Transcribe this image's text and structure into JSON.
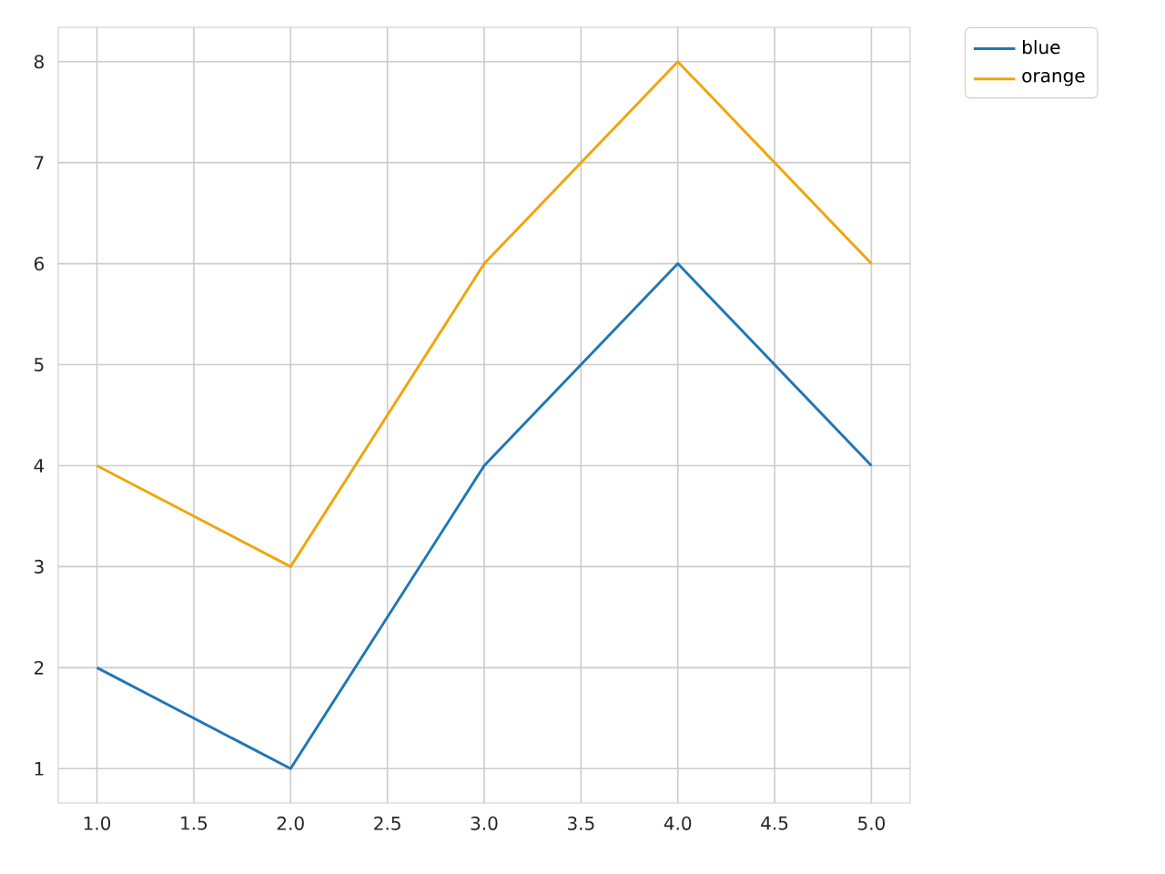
{
  "chart_data": {
    "type": "line",
    "x": [
      1,
      2,
      3,
      4,
      5
    ],
    "series": [
      {
        "name": "blue",
        "color": "#1f77b4",
        "values": [
          2,
          1,
          4,
          6,
          4
        ]
      },
      {
        "name": "orange",
        "color": "#f0a50a",
        "values": [
          4,
          3,
          6,
          8,
          6
        ]
      }
    ],
    "xlim": [
      0.8,
      5.2
    ],
    "ylim": [
      0.66,
      8.34
    ],
    "xticks": [
      {
        "value": 1,
        "label": "1.0"
      },
      {
        "value": 1.5,
        "label": "1.5"
      },
      {
        "value": 2,
        "label": "2.0"
      },
      {
        "value": 2.5,
        "label": "2.5"
      },
      {
        "value": 3,
        "label": "3.0"
      },
      {
        "value": 3.5,
        "label": "3.5"
      },
      {
        "value": 4,
        "label": "4.0"
      },
      {
        "value": 4.5,
        "label": "4.5"
      },
      {
        "value": 5,
        "label": "5.0"
      }
    ],
    "yticks": [
      1,
      2,
      3,
      4,
      5,
      6,
      7,
      8
    ],
    "grid": true,
    "legend": "top right"
  }
}
